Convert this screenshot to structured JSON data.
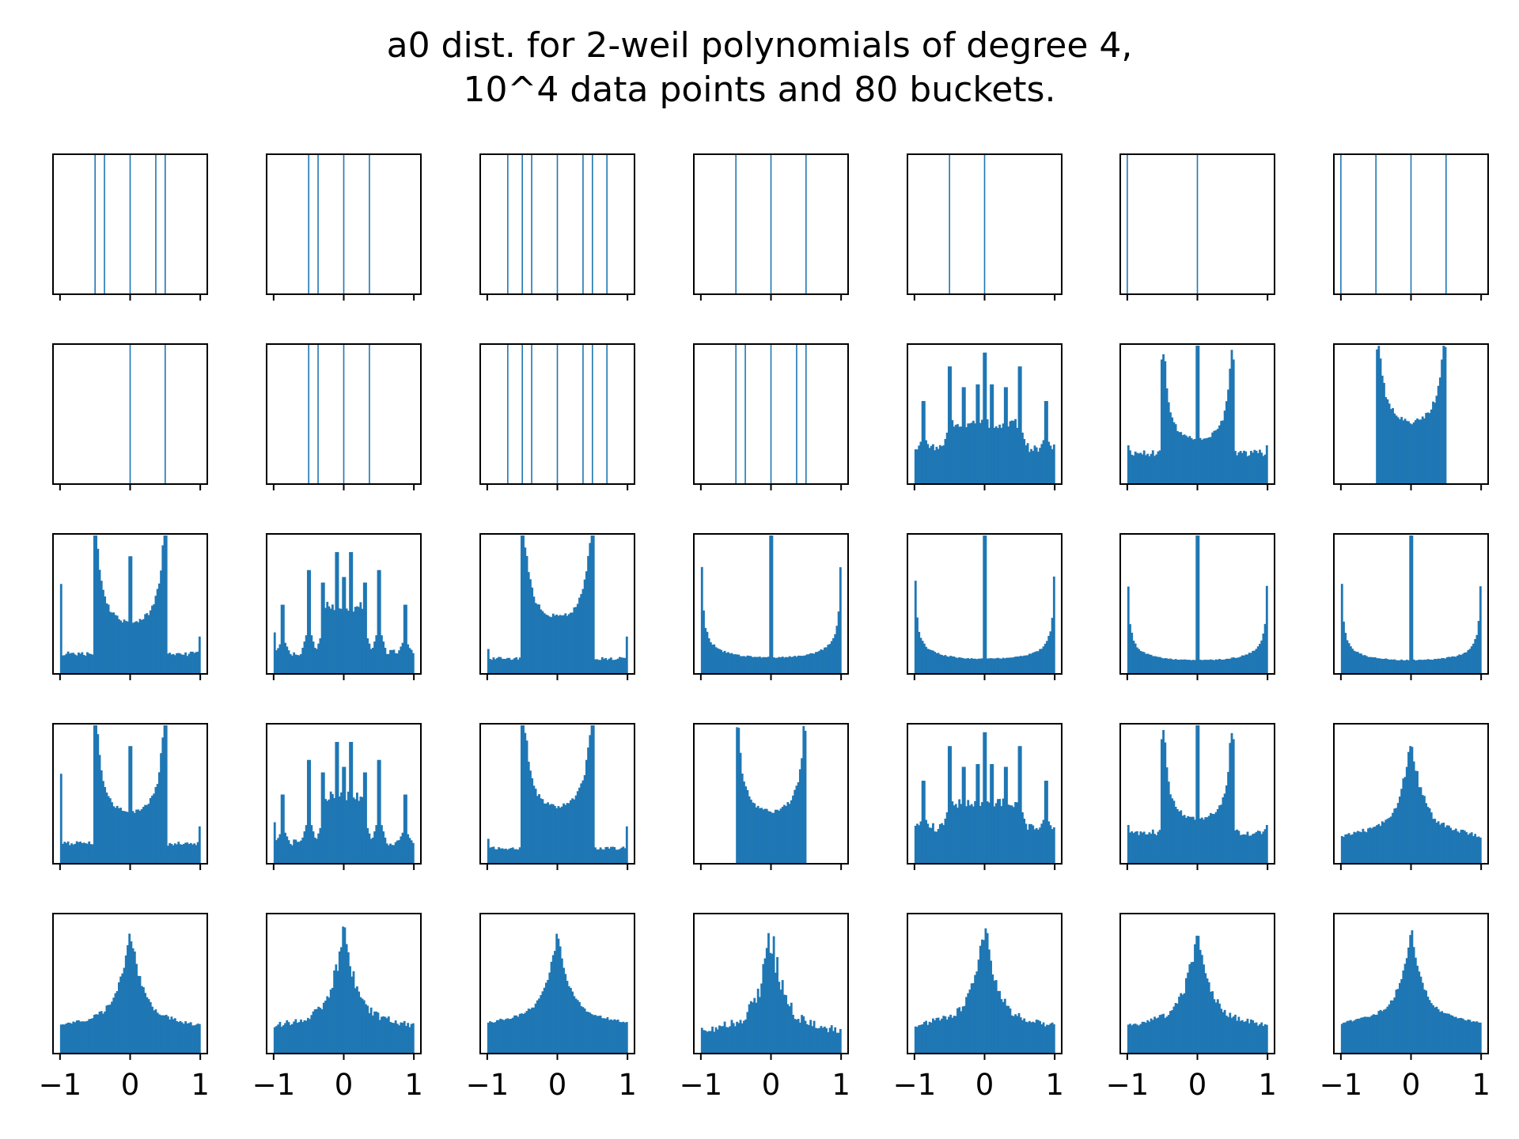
{
  "chart_data": {
    "type": "bar",
    "title_line1": "a0 dist. for 2-weil polynomials of degree 4,",
    "title_line2": "10^4 data points and 80 buckets.",
    "xlabel": "",
    "ylabel": "",
    "xlim": [
      -1.1,
      1.1
    ],
    "grid": false,
    "bar_color": "#1f77b4",
    "xtick_values": [
      -1,
      0,
      1
    ],
    "xtick_labels": [
      "−1",
      "0",
      "1"
    ],
    "rows": 5,
    "cols": 7,
    "panels": [
      {
        "row": 0,
        "col": 0,
        "kind": "lines",
        "positions": [
          -0.5,
          -0.366,
          0,
          0.366,
          0.5
        ]
      },
      {
        "row": 0,
        "col": 1,
        "kind": "lines",
        "positions": [
          -0.5,
          -0.366,
          0,
          0.366
        ]
      },
      {
        "row": 0,
        "col": 2,
        "kind": "lines",
        "positions": [
          -0.707,
          -0.5,
          -0.366,
          0,
          0.366,
          0.5,
          0.707
        ]
      },
      {
        "row": 0,
        "col": 3,
        "kind": "lines",
        "positions": [
          -0.5,
          0,
          0.5
        ]
      },
      {
        "row": 0,
        "col": 4,
        "kind": "lines",
        "positions": [
          -0.5,
          0
        ]
      },
      {
        "row": 0,
        "col": 5,
        "kind": "lines",
        "positions": [
          -1,
          0
        ]
      },
      {
        "row": 0,
        "col": 6,
        "kind": "lines",
        "positions": [
          -1,
          -0.5,
          0,
          0.5
        ]
      },
      {
        "row": 1,
        "col": 0,
        "kind": "lines",
        "positions": [
          0,
          0.5
        ]
      },
      {
        "row": 1,
        "col": 1,
        "kind": "lines",
        "positions": [
          -0.5,
          -0.366,
          0,
          0.366
        ]
      },
      {
        "row": 1,
        "col": 2,
        "kind": "lines",
        "positions": [
          -0.707,
          -0.5,
          -0.366,
          0,
          0.366,
          0.5,
          0.707
        ]
      },
      {
        "row": 1,
        "col": 3,
        "kind": "lines",
        "positions": [
          -0.5,
          -0.366,
          0,
          0.366,
          0.5
        ]
      },
      {
        "row": 1,
        "col": 4,
        "kind": "hist",
        "shape": "multi",
        "base": 0.22,
        "peaks": [
          -0.87,
          -0.5,
          -0.3,
          -0.1,
          0,
          0.1,
          0.3,
          0.5,
          0.87
        ],
        "peak_heights": [
          0.6,
          0.85,
          0.7,
          0.72,
          0.95,
          0.72,
          0.7,
          0.85,
          0.6
        ],
        "center_block": [
          -0.5,
          0.5,
          0.45
        ]
      },
      {
        "row": 1,
        "col": 5,
        "kind": "hist",
        "shape": "bowls",
        "base": 0.2,
        "peaks": [
          -1,
          -0.5,
          0,
          0.5,
          1
        ],
        "peak_heights": [
          0.28,
          0.9,
          1.0,
          0.9,
          0.28
        ],
        "bowl": [
          -0.5,
          0.5,
          0.33
        ]
      },
      {
        "row": 1,
        "col": 6,
        "kind": "hist",
        "shape": "arcsine",
        "support": [
          -0.5,
          0.5
        ],
        "floor": 0.45,
        "max": 1.0
      },
      {
        "row": 2,
        "col": 0,
        "kind": "hist",
        "shape": "bowls",
        "base": 0.13,
        "peaks": [
          -1,
          -0.5,
          0,
          0.5,
          1
        ],
        "peak_heights": [
          0.65,
          1.0,
          0.85,
          1.0,
          0.27
        ],
        "bowl": [
          -0.5,
          0.5,
          0.38
        ]
      },
      {
        "row": 2,
        "col": 1,
        "kind": "hist",
        "shape": "multi",
        "base": 0.13,
        "peaks": [
          -1,
          -0.87,
          -0.5,
          -0.3,
          -0.1,
          0,
          0.1,
          0.3,
          0.5,
          0.87,
          1
        ],
        "peak_heights": [
          0.3,
          0.5,
          0.75,
          0.66,
          0.88,
          0.7,
          0.88,
          0.66,
          0.75,
          0.5,
          0.15
        ],
        "center_block": [
          -0.3,
          0.3,
          0.5
        ]
      },
      {
        "row": 2,
        "col": 2,
        "kind": "hist",
        "shape": "bowls",
        "base": 0.1,
        "peaks": [
          -1,
          -0.5,
          0.5,
          1
        ],
        "peak_heights": [
          0.18,
          1.0,
          1.0,
          0.27
        ],
        "bowl": [
          -0.5,
          0.5,
          0.42
        ]
      },
      {
        "row": 2,
        "col": 3,
        "kind": "hist",
        "shape": "arcsine",
        "support": [
          -1,
          1
        ],
        "floor": 0.12,
        "max": 1.0,
        "spike": [
          0,
          1.0
        ]
      },
      {
        "row": 2,
        "col": 4,
        "kind": "hist",
        "shape": "arcsine",
        "support": [
          -1,
          1
        ],
        "floor": 0.11,
        "max": 0.95,
        "spike": [
          0,
          1.0
        ]
      },
      {
        "row": 2,
        "col": 5,
        "kind": "hist",
        "shape": "arcsine",
        "support": [
          -1,
          1
        ],
        "floor": 0.1,
        "max": 0.92,
        "spike": [
          0,
          1.0
        ]
      },
      {
        "row": 2,
        "col": 6,
        "kind": "hist",
        "shape": "arcsine",
        "support": [
          -1,
          1
        ],
        "floor": 0.1,
        "max": 0.68,
        "spike": [
          0,
          1.0
        ]
      },
      {
        "row": 3,
        "col": 0,
        "kind": "hist",
        "shape": "bowls",
        "base": 0.13,
        "peaks": [
          -1,
          -0.5,
          0,
          0.5,
          1
        ],
        "peak_heights": [
          0.65,
          1.0,
          0.85,
          1.0,
          0.27
        ],
        "bowl": [
          -0.5,
          0.5,
          0.38
        ]
      },
      {
        "row": 3,
        "col": 1,
        "kind": "hist",
        "shape": "multi",
        "base": 0.13,
        "peaks": [
          -1,
          -0.87,
          -0.5,
          -0.3,
          -0.1,
          0,
          0.1,
          0.3,
          0.5,
          0.87,
          1
        ],
        "peak_heights": [
          0.3,
          0.5,
          0.75,
          0.66,
          0.88,
          0.7,
          0.88,
          0.66,
          0.75,
          0.5,
          0.15
        ],
        "center_block": [
          -0.3,
          0.3,
          0.5
        ]
      },
      {
        "row": 3,
        "col": 2,
        "kind": "hist",
        "shape": "bowls",
        "base": 0.1,
        "peaks": [
          -1,
          -0.5,
          0.5,
          1
        ],
        "peak_heights": [
          0.18,
          1.0,
          1.0,
          0.27
        ],
        "bowl": [
          -0.5,
          0.5,
          0.42
        ]
      },
      {
        "row": 3,
        "col": 3,
        "kind": "hist",
        "shape": "arcsine",
        "support": [
          -0.5,
          0.5
        ],
        "floor": 0.38,
        "max": 1.0
      },
      {
        "row": 3,
        "col": 4,
        "kind": "hist",
        "shape": "multi",
        "base": 0.22,
        "peaks": [
          -0.87,
          -0.5,
          -0.3,
          -0.1,
          0,
          0.1,
          0.3,
          0.5,
          0.87
        ],
        "peak_heights": [
          0.6,
          0.85,
          0.7,
          0.72,
          0.95,
          0.72,
          0.7,
          0.85,
          0.6
        ],
        "center_block": [
          -0.5,
          0.5,
          0.45
        ]
      },
      {
        "row": 3,
        "col": 5,
        "kind": "hist",
        "shape": "bowls",
        "base": 0.2,
        "peaks": [
          -1,
          -0.5,
          0,
          0.5,
          1
        ],
        "peak_heights": [
          0.28,
          0.9,
          1.0,
          0.9,
          0.28
        ],
        "bowl": [
          -0.5,
          0.5,
          0.33
        ]
      },
      {
        "row": 3,
        "col": 6,
        "kind": "hist",
        "shape": "cusp",
        "support": [
          -1,
          1
        ],
        "edge": 0.2,
        "peak": 0.78,
        "noise": 0.035
      },
      {
        "row": 4,
        "col": 0,
        "kind": "hist",
        "shape": "cusp",
        "support": [
          -1,
          1
        ],
        "edge": 0.2,
        "peak": 0.78,
        "noise": 0.03
      },
      {
        "row": 4,
        "col": 1,
        "kind": "hist",
        "shape": "cusp",
        "support": [
          -1,
          1
        ],
        "edge": 0.2,
        "peak": 0.8,
        "noise": 0.05
      },
      {
        "row": 4,
        "col": 2,
        "kind": "hist",
        "shape": "cusp",
        "support": [
          -1,
          1
        ],
        "edge": 0.22,
        "peak": 0.76,
        "noise": 0.02
      },
      {
        "row": 4,
        "col": 3,
        "kind": "hist",
        "shape": "cusp",
        "support": [
          -1,
          1
        ],
        "edge": 0.16,
        "peak": 0.78,
        "noise": 0.08
      },
      {
        "row": 4,
        "col": 4,
        "kind": "hist",
        "shape": "cusp",
        "support": [
          -1,
          1
        ],
        "edge": 0.2,
        "peak": 0.8,
        "noise": 0.05
      },
      {
        "row": 4,
        "col": 5,
        "kind": "hist",
        "shape": "cusp",
        "support": [
          -1,
          1
        ],
        "edge": 0.2,
        "peak": 0.8,
        "noise": 0.04
      },
      {
        "row": 4,
        "col": 6,
        "kind": "hist",
        "shape": "cusp",
        "support": [
          -1,
          1
        ],
        "edge": 0.22,
        "peak": 0.78,
        "noise": 0.02
      }
    ]
  }
}
